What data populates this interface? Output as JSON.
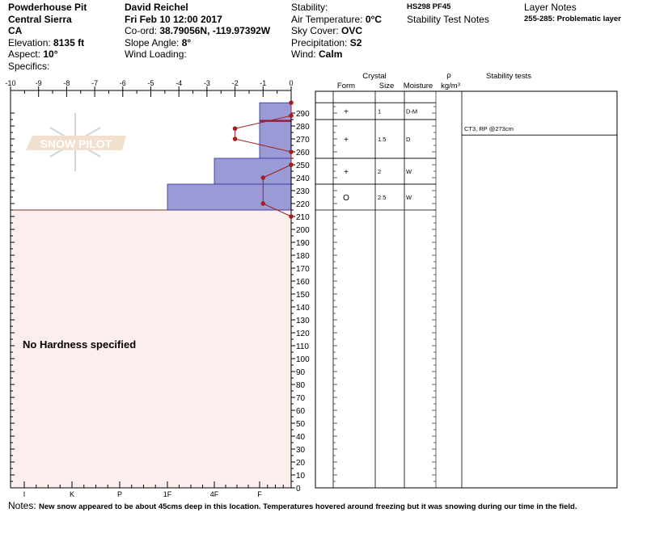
{
  "site": {
    "pit_name": "Powderhouse Pit",
    "range": "Central Sierra",
    "state": "CA",
    "elevation_label": "Elevation: ",
    "elevation": "8135 ft",
    "aspect_label": "Aspect: ",
    "aspect": "10°",
    "specifics_label": "Specifics:"
  },
  "observer": {
    "name": "David Reichel",
    "datetime": "Fri Feb 10 12:00 2017",
    "coord_label": "Co-ord: ",
    "coord": "38.79056N, -119.97392W",
    "slope_label": "Slope Angle: ",
    "slope": "8°",
    "wind_loading_label": "Wind Loading:"
  },
  "weather": {
    "stability_label": "Stability:",
    "air_temp_label": "Air Temperature: ",
    "air_temp": "0°C",
    "sky_label": "Sky Cover: ",
    "sky": "OVC",
    "precip_label": "Precipitation: ",
    "precip": "S2",
    "wind_label": "Wind:  ",
    "wind": "Calm"
  },
  "summary": {
    "hs_pf": "HS298 PF45",
    "stability_test_notes_label": "Stability Test Notes"
  },
  "layer_notes": {
    "label": "Layer Notes",
    "note": "255-285: Problematic layer"
  },
  "table_headers": {
    "crystal": "Crystal",
    "form": "Form",
    "size": "Size",
    "moisture": "Moisture",
    "rho": "ρ",
    "density_unit": "kg/m³",
    "stability_tests": "Stability tests"
  },
  "layers": [
    {
      "top": 298,
      "bottom": 285,
      "form": "",
      "size": "",
      "moisture": "",
      "hardness": "F"
    },
    {
      "top": 285,
      "bottom": 255,
      "form": "+",
      "size": "1",
      "moisture": "D-M",
      "hardness": "F"
    },
    {
      "top": 255,
      "bottom": 235,
      "form": "+",
      "size": "1.5",
      "moisture": "D",
      "hardness": "4F"
    },
    {
      "top": 235,
      "bottom": 215,
      "form": "+",
      "size": "2",
      "moisture": "W",
      "hardness": "1F"
    },
    {
      "top": 215,
      "bottom": 215,
      "form": "O",
      "size": "2.5",
      "moisture": "W",
      "hardness": "1F"
    }
  ],
  "table_rows": [
    {
      "top": 298,
      "bottom": 285,
      "form": "+",
      "size": "1",
      "moisture": "D-M"
    },
    {
      "top": 285,
      "bottom": 255,
      "form": "+",
      "size": "1.5",
      "moisture": "D"
    },
    {
      "top": 255,
      "bottom": 235,
      "form": "+",
      "size": "2",
      "moisture": "W"
    },
    {
      "top": 235,
      "bottom": 215,
      "form": "O",
      "size": "2.5",
      "moisture": "W"
    }
  ],
  "hardness_bars": [
    {
      "top": 298,
      "bottom": 255,
      "hardness": "F"
    },
    {
      "top": 255,
      "bottom": 235,
      "hardness": "4F"
    },
    {
      "top": 235,
      "bottom": 215,
      "hardness": "1F"
    }
  ],
  "critical_layer_depth": 284,
  "stability_tests": [
    {
      "depth": 273,
      "text": "CT3, RP @273cm"
    }
  ],
  "temperature_profile": [
    [
      298,
      0
    ],
    [
      288,
      0
    ],
    [
      278,
      -2
    ],
    [
      270,
      -2
    ],
    [
      260,
      0
    ],
    [
      250,
      0
    ],
    [
      240,
      -1
    ],
    [
      220,
      -1
    ],
    [
      210,
      0
    ]
  ],
  "temp_axis": {
    "ticks": [
      "-10",
      "-9",
      "-8",
      "-7",
      "-6",
      "-5",
      "-4",
      "-3",
      "-2",
      "-1",
      "0"
    ]
  },
  "hardness_axis": {
    "labels": [
      "I",
      "K",
      "P",
      "1F",
      "4F",
      "F"
    ]
  },
  "depth_axis": {
    "max": 290,
    "step": 10
  },
  "no_hardness_text": "No Hardness specified",
  "watermark": "SNOW PILOT",
  "notes": {
    "label": "Notes: ",
    "text": "New snow appeared to be about 45cms deep in this location. Temperatures hovered around freezing but it was snowing during our time in the field."
  },
  "colors": {
    "hardness_fill": "#9a9ad6",
    "hardness_stroke": "#3030a0",
    "temp_line": "#a02020",
    "no_data_fill": "#fdeeee"
  }
}
